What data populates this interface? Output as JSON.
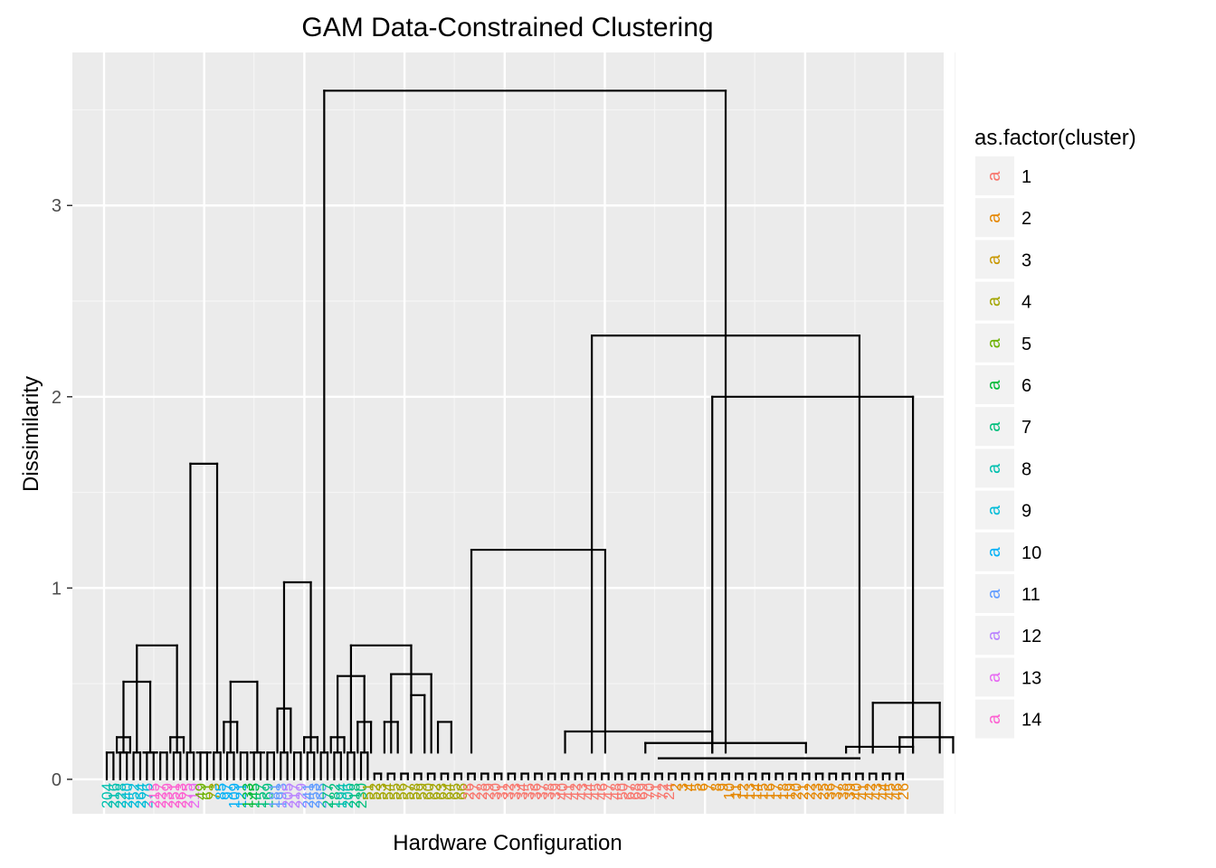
{
  "chart_data": {
    "type": "dendrogram",
    "title": "GAM Data-Constrained Clustering",
    "xlabel": "Hardware Configuration",
    "ylabel": "Dissimilarity",
    "ylim": [
      -0.18,
      3.8
    ],
    "yticks": [
      0,
      1,
      2,
      3
    ],
    "grid": true,
    "legend": {
      "title": "as.factor(cluster)",
      "position": "right",
      "key_glyph": "a",
      "entries": [
        {
          "label": "1",
          "color": "#F8766D"
        },
        {
          "label": "2",
          "color": "#E58700"
        },
        {
          "label": "3",
          "color": "#C99800"
        },
        {
          "label": "4",
          "color": "#A3A500"
        },
        {
          "label": "5",
          "color": "#6BB100"
        },
        {
          "label": "6",
          "color": "#00BA38"
        },
        {
          "label": "7",
          "color": "#00BF7D"
        },
        {
          "label": "8",
          "color": "#00C0AF"
        },
        {
          "label": "9",
          "color": "#00BCD8"
        },
        {
          "label": "10",
          "color": "#00B0F6"
        },
        {
          "label": "11",
          "color": "#619CFF"
        },
        {
          "label": "12",
          "color": "#B983FF"
        },
        {
          "label": "13",
          "color": "#E76BF3"
        },
        {
          "label": "14",
          "color": "#FD61D1"
        }
      ]
    },
    "leaves": [
      {
        "label": "204",
        "cluster": 8
      },
      {
        "label": "216",
        "cluster": 8
      },
      {
        "label": "228",
        "cluster": 8
      },
      {
        "label": "240",
        "cluster": 9
      },
      {
        "label": "252",
        "cluster": 9
      },
      {
        "label": "264",
        "cluster": 9
      },
      {
        "label": "276",
        "cluster": 9
      },
      {
        "label": "215",
        "cluster": 14
      },
      {
        "label": "227",
        "cluster": 14
      },
      {
        "label": "239",
        "cluster": 14
      },
      {
        "label": "251",
        "cluster": 14
      },
      {
        "label": "263",
        "cluster": 14
      },
      {
        "label": "275",
        "cluster": 14
      },
      {
        "label": "219",
        "cluster": 13
      },
      {
        "label": "49",
        "cluster": 5
      },
      {
        "label": "61",
        "cluster": 5
      },
      {
        "label": "73",
        "cluster": 4
      },
      {
        "label": "85",
        "cluster": 10
      },
      {
        "label": "97",
        "cluster": 10
      },
      {
        "label": "109",
        "cluster": 10
      },
      {
        "label": "121",
        "cluster": 10
      },
      {
        "label": "133",
        "cluster": 6
      },
      {
        "label": "145",
        "cluster": 6
      },
      {
        "label": "157",
        "cluster": 7
      },
      {
        "label": "169",
        "cluster": 7
      },
      {
        "label": "181",
        "cluster": 11
      },
      {
        "label": "193",
        "cluster": 11
      },
      {
        "label": "205",
        "cluster": 12
      },
      {
        "label": "217",
        "cluster": 12
      },
      {
        "label": "229",
        "cluster": 12
      },
      {
        "label": "241",
        "cluster": 11
      },
      {
        "label": "253",
        "cluster": 11
      },
      {
        "label": "265",
        "cluster": 11
      },
      {
        "label": "277",
        "cluster": 7
      },
      {
        "label": "182",
        "cluster": 7
      },
      {
        "label": "194",
        "cluster": 8
      },
      {
        "label": "206",
        "cluster": 8
      },
      {
        "label": "218",
        "cluster": 7
      },
      {
        "label": "230",
        "cluster": 7
      },
      {
        "label": "51",
        "cluster": 4
      },
      {
        "label": "52",
        "cluster": 4
      },
      {
        "label": "53",
        "cluster": 4
      },
      {
        "label": "54",
        "cluster": 4
      },
      {
        "label": "55",
        "cluster": 4
      },
      {
        "label": "56",
        "cluster": 4
      },
      {
        "label": "57",
        "cluster": 4
      },
      {
        "label": "58",
        "cluster": 4
      },
      {
        "label": "59",
        "cluster": 4
      },
      {
        "label": "60",
        "cluster": 4
      },
      {
        "label": "62",
        "cluster": 4
      },
      {
        "label": "63",
        "cluster": 4
      },
      {
        "label": "64",
        "cluster": 4
      },
      {
        "label": "65",
        "cluster": 4
      },
      {
        "label": "66",
        "cluster": 4
      },
      {
        "label": "26",
        "cluster": 1
      },
      {
        "label": "27",
        "cluster": 1
      },
      {
        "label": "28",
        "cluster": 1
      },
      {
        "label": "29",
        "cluster": 1
      },
      {
        "label": "30",
        "cluster": 1
      },
      {
        "label": "31",
        "cluster": 1
      },
      {
        "label": "32",
        "cluster": 1
      },
      {
        "label": "33",
        "cluster": 1
      },
      {
        "label": "34",
        "cluster": 1
      },
      {
        "label": "35",
        "cluster": 1
      },
      {
        "label": "36",
        "cluster": 1
      },
      {
        "label": "37",
        "cluster": 1
      },
      {
        "label": "38",
        "cluster": 1
      },
      {
        "label": "39",
        "cluster": 1
      },
      {
        "label": "40",
        "cluster": 1
      },
      {
        "label": "41",
        "cluster": 1
      },
      {
        "label": "42",
        "cluster": 1
      },
      {
        "label": "43",
        "cluster": 1
      },
      {
        "label": "44",
        "cluster": 1
      },
      {
        "label": "45",
        "cluster": 1
      },
      {
        "label": "46",
        "cluster": 1
      },
      {
        "label": "47",
        "cluster": 1
      },
      {
        "label": "48",
        "cluster": 1
      },
      {
        "label": "50",
        "cluster": 1
      },
      {
        "label": "67",
        "cluster": 1
      },
      {
        "label": "68",
        "cluster": 1
      },
      {
        "label": "69",
        "cluster": 1
      },
      {
        "label": "70",
        "cluster": 1
      },
      {
        "label": "71",
        "cluster": 1
      },
      {
        "label": "72",
        "cluster": 1
      },
      {
        "label": "24",
        "cluster": 1
      },
      {
        "label": "2",
        "cluster": 2
      },
      {
        "label": "3",
        "cluster": 2
      },
      {
        "label": "4",
        "cluster": 2
      },
      {
        "label": "5",
        "cluster": 2
      },
      {
        "label": "6",
        "cluster": 2
      },
      {
        "label": "7",
        "cluster": 2
      },
      {
        "label": "8",
        "cluster": 2
      },
      {
        "label": "9",
        "cluster": 2
      },
      {
        "label": "10",
        "cluster": 2
      },
      {
        "label": "11",
        "cluster": 2
      },
      {
        "label": "12",
        "cluster": 2
      },
      {
        "label": "13",
        "cluster": 2
      },
      {
        "label": "14",
        "cluster": 2
      },
      {
        "label": "15",
        "cluster": 2
      },
      {
        "label": "16",
        "cluster": 2
      },
      {
        "label": "17",
        "cluster": 2
      },
      {
        "label": "18",
        "cluster": 2
      },
      {
        "label": "19",
        "cluster": 2
      },
      {
        "label": "20",
        "cluster": 2
      },
      {
        "label": "21",
        "cluster": 2
      },
      {
        "label": "22",
        "cluster": 2
      },
      {
        "label": "23",
        "cluster": 2
      },
      {
        "label": "25",
        "cluster": 2
      },
      {
        "label": "36",
        "cluster": 2
      },
      {
        "label": "37",
        "cluster": 2
      },
      {
        "label": "38",
        "cluster": 2
      },
      {
        "label": "39",
        "cluster": 2
      },
      {
        "label": "40",
        "cluster": 2
      },
      {
        "label": "41",
        "cluster": 2
      },
      {
        "label": "42",
        "cluster": 2
      },
      {
        "label": "43",
        "cluster": 2
      },
      {
        "label": "44",
        "cluster": 2
      },
      {
        "label": "45",
        "cluster": 2
      },
      {
        "label": "46",
        "cluster": 2
      },
      {
        "label": "26",
        "cluster": 2
      }
    ],
    "merges": [
      {
        "x": [
          0.5,
          1.5
        ],
        "height": 0.22
      },
      {
        "x": [
          2.5,
          3.5
        ],
        "height": 0.14
      },
      {
        "x": [
          0.5,
          1.5
        ],
        "height": 0.14
      },
      {
        "x": [
          2.5,
          3.5
        ],
        "height": 0.14
      },
      {
        "x": [
          1,
          3
        ],
        "height": 0.51
      },
      {
        "x": [
          4.5,
          5.5
        ],
        "height": 0.22
      },
      {
        "x": [
          6.5,
          7.5
        ],
        "height": 0.14
      },
      {
        "x": [
          2,
          5
        ],
        "height": 0.7
      },
      {
        "x": [
          6,
          8
        ],
        "height": 1.65
      },
      {
        "x": [
          8.5,
          9.5
        ],
        "height": 0.3
      },
      {
        "x": [
          10.5,
          11.5
        ],
        "height": 0.14
      },
      {
        "x": [
          9,
          11
        ],
        "height": 0.51
      },
      {
        "x": [
          12.5,
          13.5
        ],
        "height": 0.37
      },
      {
        "x": [
          14.5,
          15.5
        ],
        "height": 0.22
      },
      {
        "x": [
          13,
          15
        ],
        "height": 1.03
      },
      {
        "x": [
          16.5,
          17.5
        ],
        "height": 0.22
      },
      {
        "x": [
          18.5,
          19.5
        ],
        "height": 0.3
      },
      {
        "x": [
          17,
          19
        ],
        "height": 0.54
      },
      {
        "x": [
          20.5,
          21.5
        ],
        "height": 0.3
      },
      {
        "x": [
          22.5,
          23.5
        ],
        "height": 0.44
      },
      {
        "x": [
          24.5,
          25.5
        ],
        "height": 0.3
      },
      {
        "x": [
          21,
          24
        ],
        "height": 0.55
      },
      {
        "x": [
          18,
          22.5
        ],
        "height": 0.7
      },
      {
        "x": [
          27,
          37
        ],
        "height": 1.2
      },
      {
        "x": [
          34,
          45
        ],
        "height": 0.25
      },
      {
        "x": [
          40,
          52
        ],
        "height": 0.19
      },
      {
        "x": [
          41,
          56
        ],
        "height": 0.11
      },
      {
        "x": [
          45,
          60
        ],
        "height": 2.0
      },
      {
        "x": [
          57,
          62
        ],
        "height": 0.4
      },
      {
        "x": [
          55,
          60
        ],
        "height": 0.17
      },
      {
        "x": [
          59,
          63
        ],
        "height": 0.22
      },
      {
        "x": [
          36,
          56
        ],
        "height": 2.32
      },
      {
        "x": [
          16,
          46
        ],
        "height": 3.6
      }
    ]
  }
}
